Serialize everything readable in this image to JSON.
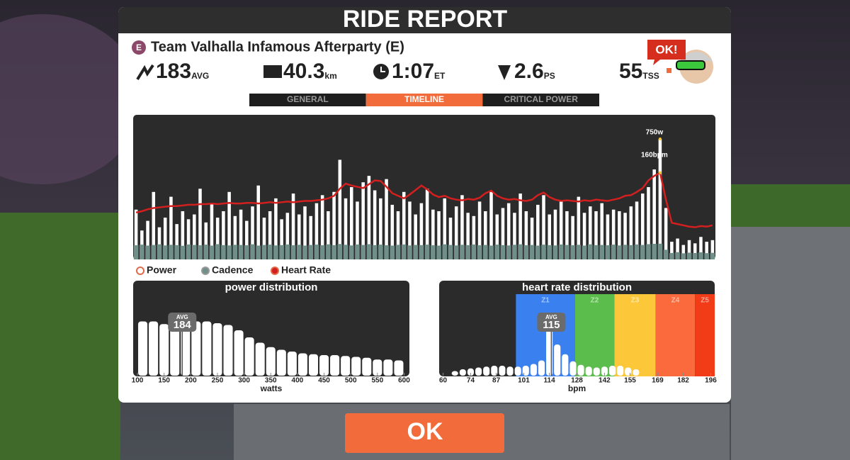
{
  "header": {
    "title": "RIDE REPORT"
  },
  "event": {
    "category": "E",
    "name": "Team Valhalla Infamous Afterparty (E)"
  },
  "stats": [
    {
      "value": 183,
      "unit": "AVG"
    },
    {
      "value": 40.3,
      "unit": "km"
    },
    {
      "value": "1:07",
      "unit": "ET"
    },
    {
      "value": 2.6,
      "unit": "PS"
    },
    {
      "value": 55,
      "unit": "TSS"
    }
  ],
  "badge": "OK!",
  "tabs": {
    "items": [
      "GENERAL",
      "TIMELINE",
      "CRITICAL POWER"
    ],
    "active": 1
  },
  "button": "OK",
  "chart_data": [
    {
      "type": "timeline",
      "annotations": [
        "750w",
        "160bpm"
      ],
      "ylim": [
        0,
        900
      ],
      "y2lim": [
        25,
        250
      ],
      "series": [
        {
          "name": "Power",
          "color": "#ffffff",
          "values": [
            310,
            180,
            240,
            420,
            200,
            260,
            390,
            220,
            300,
            250,
            280,
            440,
            230,
            350,
            260,
            300,
            420,
            270,
            310,
            240,
            330,
            460,
            260,
            300,
            380,
            250,
            290,
            410,
            280,
            330,
            270,
            350,
            400,
            300,
            420,
            620,
            380,
            450,
            360,
            480,
            520,
            430,
            380,
            500,
            340,
            300,
            420,
            360,
            280,
            350,
            440,
            310,
            300,
            380,
            260,
            330,
            400,
            290,
            270,
            360,
            300,
            420,
            280,
            320,
            350,
            290,
            410,
            300,
            260,
            340,
            400,
            280,
            310,
            360,
            300,
            270,
            390,
            290,
            330,
            300,
            350,
            280,
            310,
            300,
            290,
            330,
            360,
            410,
            450,
            560,
            750,
            320,
            110,
            130,
            90,
            120,
            100,
            140,
            110,
            120
          ]
        },
        {
          "name": "Cadence",
          "color": "#6f8f88",
          "values": [
            88,
            92,
            86,
            90,
            94,
            87,
            91,
            89,
            85,
            93,
            90,
            88,
            92,
            86,
            95,
            89,
            87,
            91,
            90,
            88,
            94,
            86,
            90,
            92,
            87,
            89,
            93,
            88,
            91,
            86,
            90,
            92,
            88,
            94,
            89,
            96,
            91,
            87,
            93,
            90,
            95,
            89,
            92,
            88,
            86,
            91,
            93,
            87,
            90,
            89,
            92,
            88,
            86,
            94,
            90,
            87,
            91,
            89,
            93,
            88,
            90,
            86,
            92,
            89,
            87,
            91,
            94,
            88,
            90,
            86,
            92,
            89,
            87,
            93,
            90,
            88,
            91,
            86,
            94,
            89,
            90,
            88,
            92,
            87,
            91,
            89,
            93,
            90,
            95,
            97,
            98,
            60,
            40,
            45,
            38,
            42,
            40,
            44,
            39,
            41
          ]
        },
        {
          "name": "Heart Rate",
          "color": "#d41f1f",
          "axis": "y2",
          "values": [
            98,
            100,
            103,
            105,
            106,
            107,
            108,
            108,
            109,
            110,
            110,
            111,
            111,
            112,
            111,
            112,
            113,
            112,
            112,
            113,
            113,
            112,
            113,
            114,
            113,
            114,
            115,
            114,
            115,
            116,
            116,
            117,
            118,
            120,
            124,
            135,
            143,
            140,
            138,
            136,
            142,
            148,
            147,
            138,
            128,
            124,
            120,
            126,
            133,
            140,
            134,
            126,
            122,
            124,
            120,
            118,
            117,
            119,
            118,
            121,
            128,
            132,
            124,
            120,
            118,
            119,
            117,
            116,
            118,
            125,
            129,
            122,
            118,
            116,
            117,
            116,
            115,
            117,
            116,
            118,
            117,
            116,
            118,
            120,
            124,
            125,
            130,
            136,
            148,
            155,
            160,
            118,
            82,
            80,
            78,
            76,
            75,
            77,
            76,
            78
          ]
        }
      ]
    },
    {
      "type": "histogram",
      "title": "power distribution",
      "color": "#ffffff",
      "bins": [
        100,
        120,
        140,
        160,
        180,
        200,
        220,
        240,
        260,
        280,
        300,
        320,
        340,
        360,
        380,
        400,
        420,
        440,
        460,
        480,
        500,
        520,
        540,
        560,
        580,
        600
      ],
      "values": [
        58,
        58,
        55,
        54,
        57,
        58,
        58,
        56,
        54,
        48,
        40,
        34,
        29,
        26,
        24,
        22,
        21,
        20,
        20,
        19,
        18,
        17,
        15,
        15,
        14
      ],
      "xlim": [
        92,
        610
      ],
      "ylim": [
        0,
        100
      ],
      "xticks": [
        100,
        150,
        200,
        250,
        300,
        350,
        400,
        450,
        500,
        550,
        600
      ],
      "xlabel": "watts",
      "avg": {
        "label": "AVG",
        "value": 184
      }
    },
    {
      "type": "histogram",
      "title": "heart rate distribution",
      "color": "#ffffff",
      "bins": [
        64,
        68,
        72,
        76,
        80,
        84,
        88,
        92,
        96,
        100,
        104,
        108,
        112,
        116,
        120,
        124,
        128,
        132,
        136,
        140,
        144,
        148,
        152,
        156,
        160
      ],
      "values": [
        2,
        4,
        5,
        6,
        7,
        8,
        8,
        7,
        7,
        8,
        10,
        14,
        50,
        32,
        21,
        13,
        9,
        7,
        6,
        7,
        8,
        8,
        6,
        4
      ],
      "xlim": [
        58,
        198
      ],
      "ylim": [
        0,
        100
      ],
      "xticks": [
        60,
        74,
        87,
        101,
        114,
        128,
        142,
        155,
        169,
        182,
        196
      ],
      "xlabel": "bpm",
      "avg": {
        "label": "AVG",
        "value": 115
      },
      "zones": [
        {
          "name": "Z1",
          "range": [
            97,
            127
          ],
          "color": "#3a80ee"
        },
        {
          "name": "Z2",
          "range": [
            127,
            147
          ],
          "color": "#5bbd4b"
        },
        {
          "name": "Z3",
          "range": [
            147,
            168
          ],
          "color": "#fcc83a"
        },
        {
          "name": "Z4",
          "range": [
            168,
            188
          ],
          "color": "#fb6a3c"
        },
        {
          "name": "Z5",
          "range": [
            188,
            198
          ],
          "color": "#f23b17"
        }
      ]
    }
  ]
}
